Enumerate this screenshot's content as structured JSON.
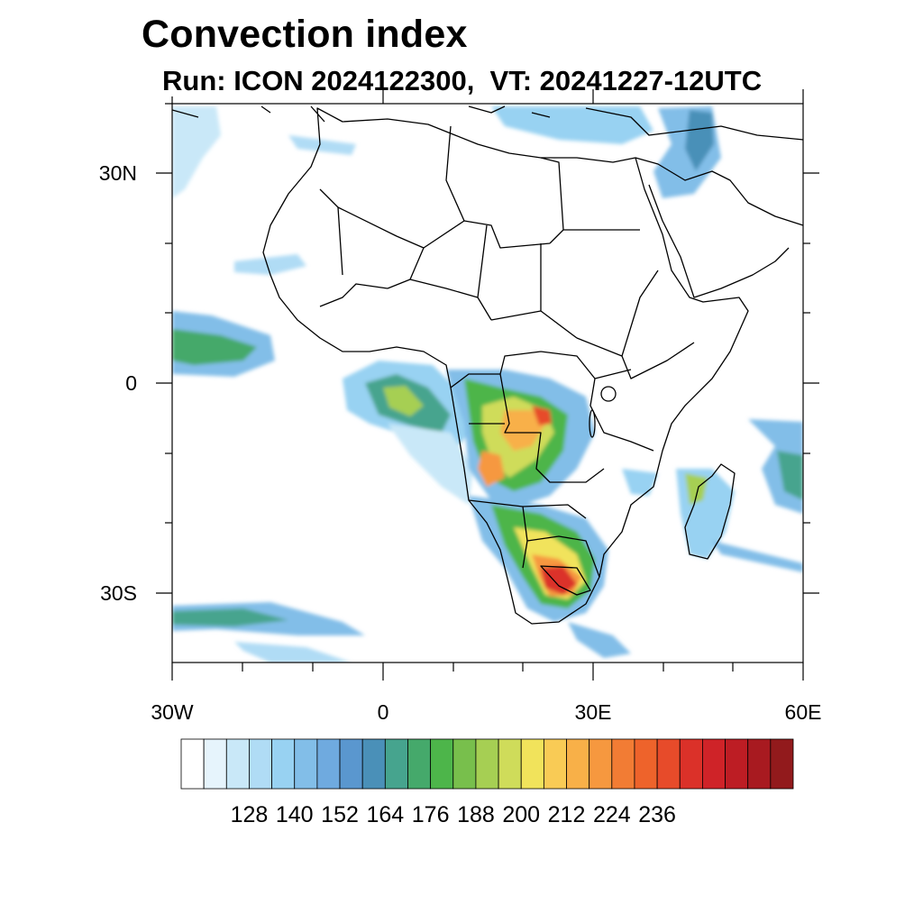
{
  "title": "Convection index",
  "subtitle": "Run: ICON 2024122300,  VT: 20241227-12UTC",
  "map": {
    "lon_range": [
      -30,
      60
    ],
    "lat_range": [
      -40,
      40
    ],
    "lat_labels": [
      {
        "lat": 30,
        "text": "30N"
      },
      {
        "lat": 0,
        "text": "0"
      },
      {
        "lat": -30,
        "text": "30S"
      }
    ],
    "lon_labels": [
      {
        "lon": -30,
        "text": "30W"
      },
      {
        "lon": 0,
        "text": "0"
      },
      {
        "lon": 30,
        "text": "30E"
      },
      {
        "lon": 60,
        "text": "60E"
      }
    ]
  },
  "colorbar": {
    "colors": [
      "#ffffff",
      "#e6f4fc",
      "#c9e8f8",
      "#b0dcf5",
      "#98d2f2",
      "#82bee8",
      "#6faadf",
      "#5a97cf",
      "#4a90b8",
      "#46a48e",
      "#45a96b",
      "#4db54a",
      "#78bf4c",
      "#a6cf53",
      "#cfdc5a",
      "#f1e35b",
      "#f9cb55",
      "#f8b048",
      "#f6983f",
      "#f27c34",
      "#ee632b",
      "#e74b2a",
      "#db3129",
      "#cf2328",
      "#bd1d24",
      "#a81a20",
      "#921a1c"
    ],
    "labels": [
      "128",
      "140",
      "152",
      "164",
      "176",
      "188",
      "200",
      "212",
      "224",
      "236"
    ]
  }
}
